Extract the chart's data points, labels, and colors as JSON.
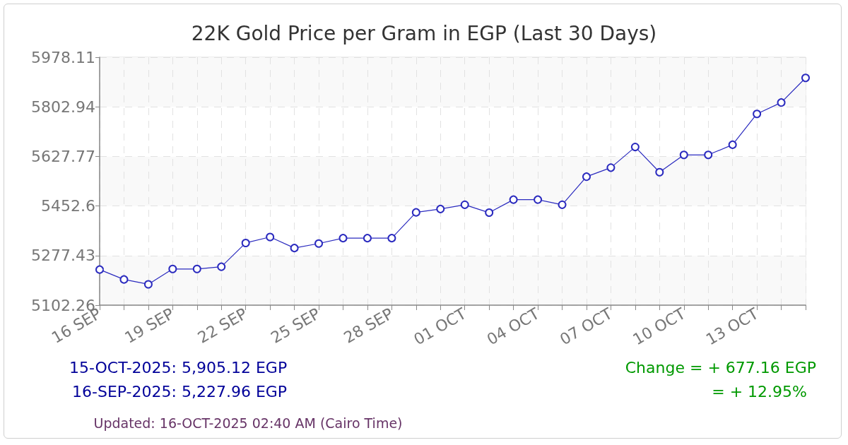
{
  "chart_data": {
    "type": "line",
    "title": "22K Gold Price per Gram in EGP (Last 30 Days)",
    "categories": [
      "16 SEP",
      null,
      null,
      "19 SEP",
      null,
      null,
      "22 SEP",
      null,
      null,
      "25 SEP",
      null,
      null,
      "28 SEP",
      null,
      null,
      "01 OCT",
      null,
      null,
      "04 OCT",
      null,
      null,
      "07 OCT",
      null,
      null,
      "10 OCT",
      null,
      null,
      "13 OCT",
      null,
      null
    ],
    "values": [
      5227.96,
      5193,
      5176,
      5230,
      5230,
      5238,
      5322,
      5343,
      5304,
      5320,
      5339,
      5339,
      5339,
      5430,
      5442,
      5457,
      5429,
      5475,
      5475,
      5457,
      5556,
      5588,
      5661,
      5572,
      5633,
      5633,
      5669,
      5778,
      5818,
      5905.12
    ],
    "color": "#2b2bbf",
    "marker": "circle",
    "grid": true,
    "ylim": [
      5102.26,
      5978.11
    ],
    "yticks": [
      5102.26,
      5277.43,
      5452.6,
      5627.77,
      5802.94,
      5978.11
    ],
    "annotations": [
      "15-OCT-2025: 5,905.12 EGP",
      "16-SEP-2025: 5,227.96 EGP",
      "Change = + 677.16 EGP",
      "= + 12.95%",
      "Updated: 16-OCT-2025 02:40 AM (Cairo Time)"
    ]
  }
}
